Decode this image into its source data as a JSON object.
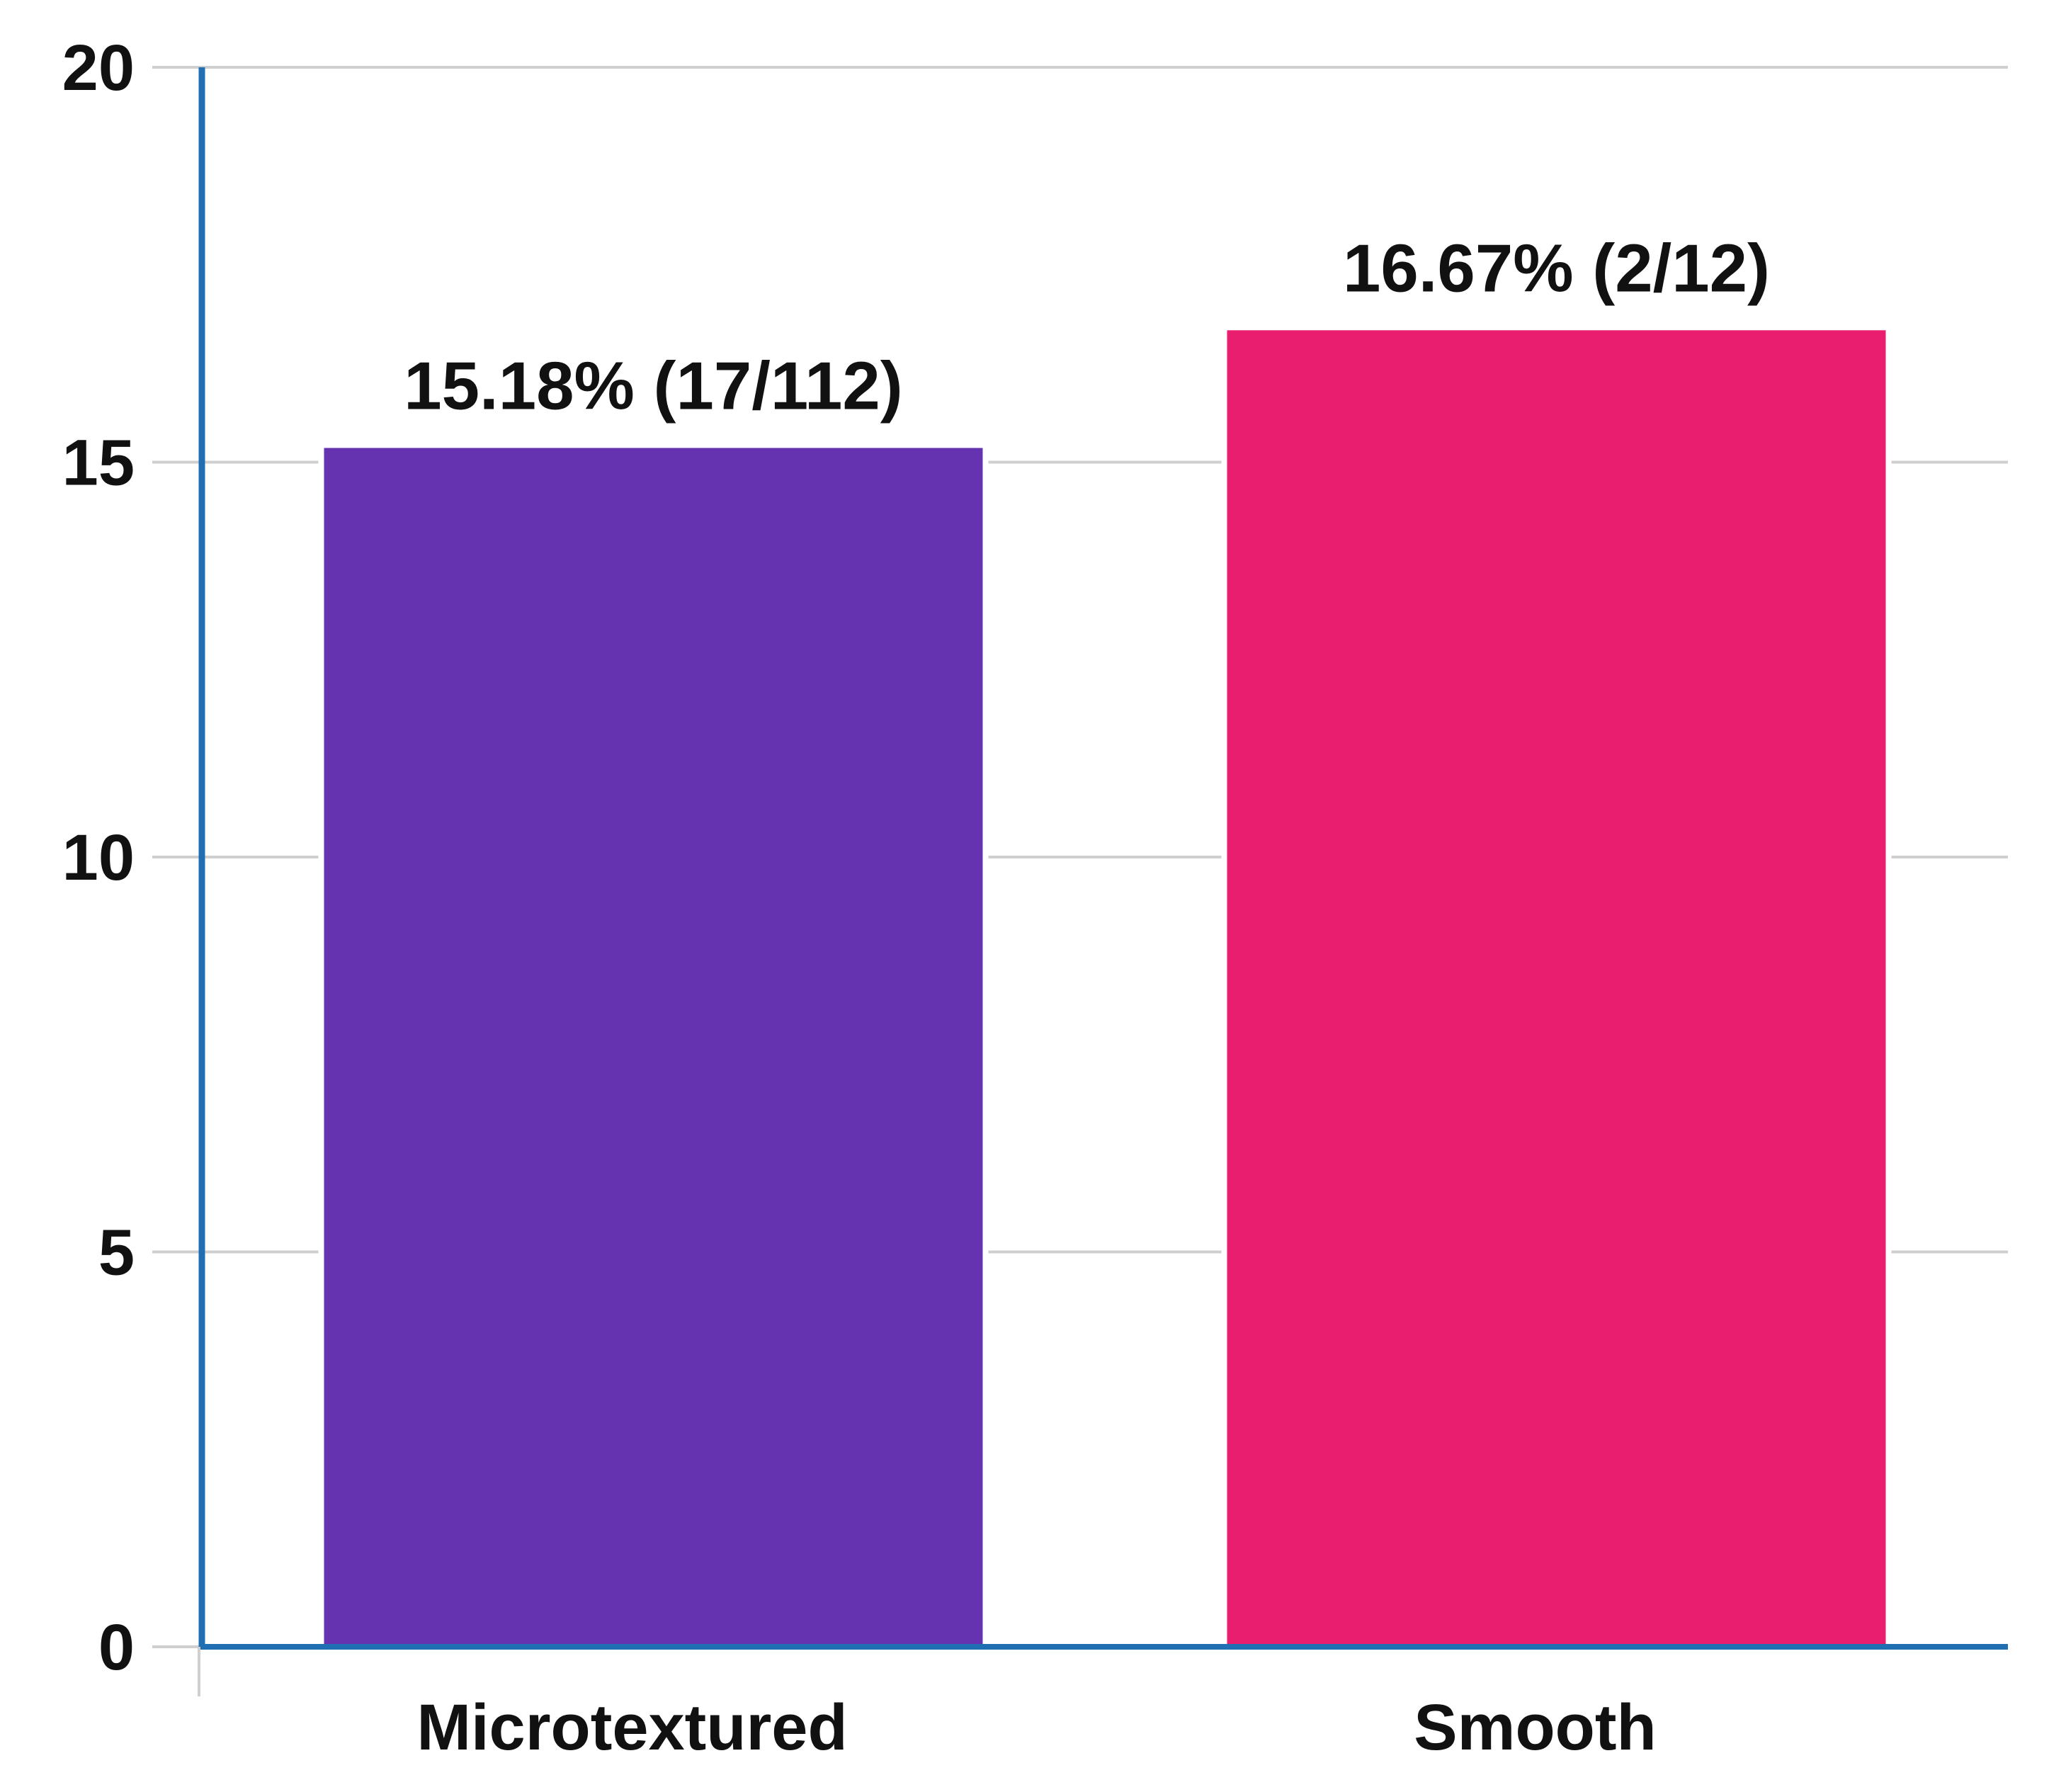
{
  "chart_data": {
    "type": "bar",
    "title": "",
    "xlabel": "",
    "ylabel": "",
    "categories": [
      "Microtextured",
      "Smooth"
    ],
    "values": [
      15.18,
      16.67
    ],
    "data_labels": [
      "15.18% (17/112)",
      "16.67% (2/12)"
    ],
    "ylim": [
      0,
      20
    ],
    "yticks": [
      "0",
      "5",
      "10",
      "15",
      "20"
    ],
    "colors": [
      "#6633B0",
      "#E91E6E"
    ],
    "axis_color": "#1F6FB2",
    "grid_color": "#CFCFCF",
    "grid": true,
    "legend": "none"
  }
}
